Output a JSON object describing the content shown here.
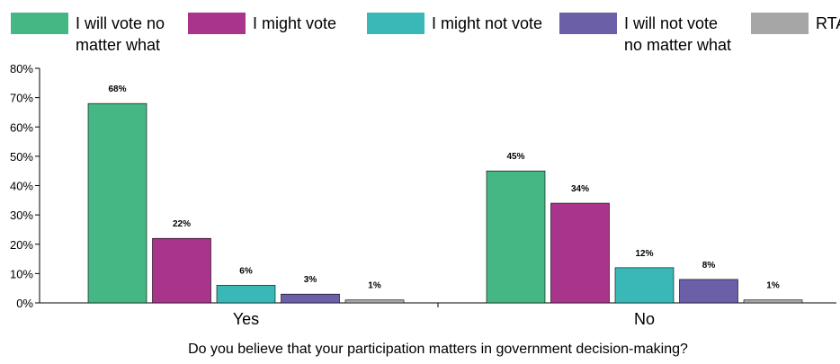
{
  "chart_data": {
    "type": "bar",
    "xlabel": "Do you believe that your participation matters in government decision-making?",
    "ylabel": "",
    "categories": [
      "Yes",
      "No"
    ],
    "series": [
      {
        "name": "I will vote no matter what",
        "label_lines": [
          "I will vote no",
          "matter what"
        ],
        "color": "#45b784",
        "values": [
          68,
          45
        ],
        "labels": [
          "68%",
          "45%"
        ]
      },
      {
        "name": "I might vote",
        "label_lines": [
          "I might vote"
        ],
        "color": "#a8348c",
        "values": [
          22,
          34
        ],
        "labels": [
          "22%",
          "34%"
        ]
      },
      {
        "name": "I might not vote",
        "label_lines": [
          "I might not vote"
        ],
        "color": "#3ab8b8",
        "values": [
          6,
          12
        ],
        "labels": [
          "6%",
          "12%"
        ]
      },
      {
        "name": "I will not vote no matter what",
        "label_lines": [
          "I will not vote",
          "no matter what"
        ],
        "color": "#6b5fa8",
        "values": [
          3,
          8
        ],
        "labels": [
          "3%",
          "8%"
        ]
      },
      {
        "name": "RTA",
        "label_lines": [
          "RTA"
        ],
        "color": "#a6a6a6",
        "values": [
          1,
          1
        ],
        "labels": [
          "1%",
          "1%"
        ]
      }
    ],
    "yticks": [
      0,
      10,
      20,
      30,
      40,
      50,
      60,
      70,
      80
    ],
    "ytick_labels": [
      "0%",
      "10%",
      "20%",
      "30%",
      "40%",
      "50%",
      "60%",
      "70%",
      "80%"
    ],
    "ylim": [
      0,
      80
    ],
    "grid": false,
    "legend_position": "top"
  }
}
